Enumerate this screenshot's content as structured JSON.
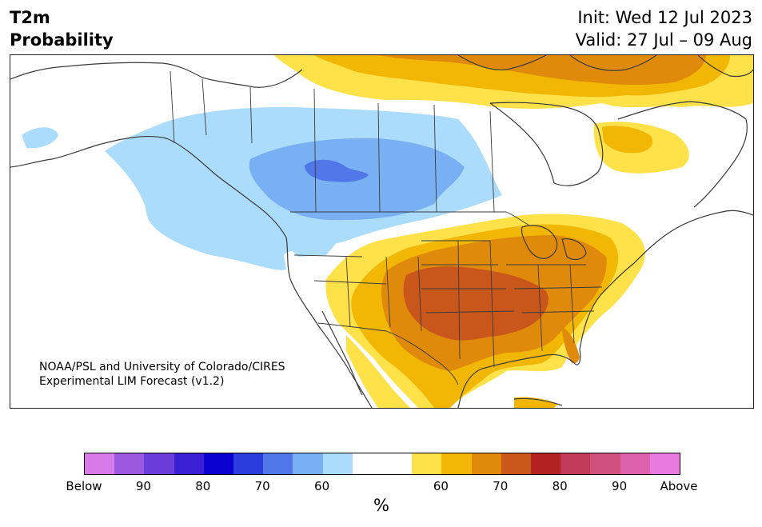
{
  "header": {
    "title_line1": "T2m",
    "title_line2": "Probability",
    "init": "Init: Wed 12 Jul 2023",
    "valid": "Valid: 27 Jul – 09 Aug"
  },
  "map": {
    "credit_line1": "NOAA/PSL and University of Colorado/CIRES",
    "credit_line2": "Experimental LIM Forecast (v1.2)"
  },
  "colorbar": {
    "unit": "%",
    "colors": [
      "#d67ae8",
      "#9b59e0",
      "#6b3dd8",
      "#3a1fd3",
      "#0a00d0",
      "#2b3ddc",
      "#5176e8",
      "#79b0f3",
      "#acdcfb",
      "#ffffff",
      "#ffffff",
      "#ffe14a",
      "#f2b705",
      "#e08a0b",
      "#c9561a",
      "#b22222",
      "#c23a5a",
      "#d0507e",
      "#dc62ae",
      "#e87ae0"
    ],
    "tick_labels": [
      "Below",
      "90",
      "80",
      "70",
      "60",
      "60",
      "70",
      "80",
      "90",
      "Above"
    ]
  },
  "colors": {
    "white": "#ffffff",
    "light_blue": "#acdcfb",
    "mid_blue": "#79b0f3",
    "dark_blue": "#5176e8",
    "yellow": "#ffe14a",
    "gold": "#f2b705",
    "orange": "#e08a0b",
    "rust": "#c9561a",
    "border": "#3a3a3a"
  }
}
